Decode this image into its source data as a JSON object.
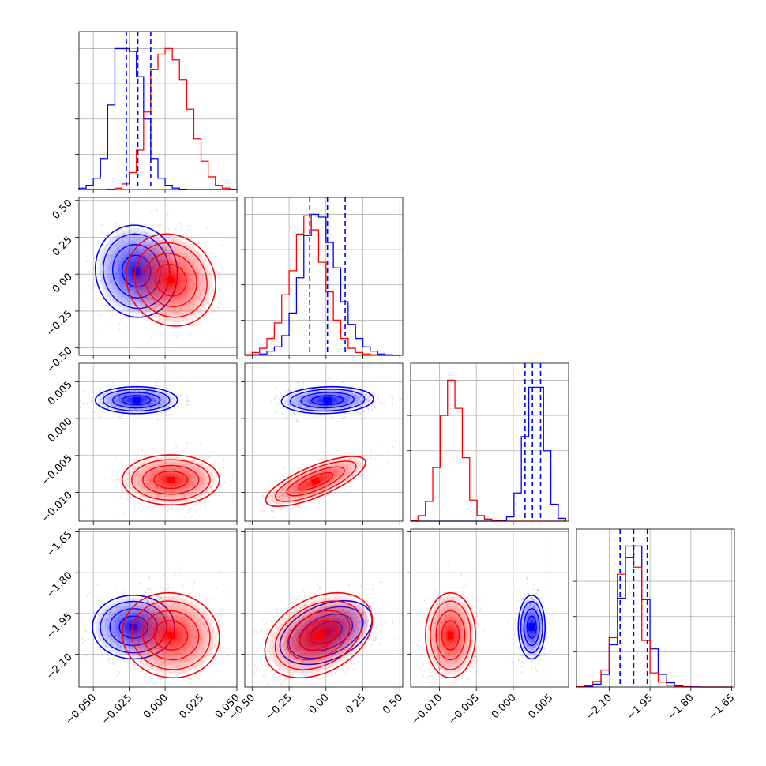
{
  "chart_data": {
    "type": "corner",
    "title": "",
    "grid": true,
    "legend": "none",
    "series": [
      {
        "color": "#ff0000"
      },
      {
        "color": "#0000ff"
      }
    ],
    "parameters": [
      {
        "range": [
          -0.06,
          0.05
        ],
        "ticks": [
          -0.05,
          -0.025,
          0.0,
          0.025,
          0.05
        ],
        "tick_labels": [
          "−0.050",
          "−0.025",
          "0.000",
          "0.025",
          "0.050"
        ]
      },
      {
        "range": [
          -0.55,
          0.52
        ],
        "ticks": [
          -0.5,
          -0.25,
          0.0,
          0.25,
          0.5
        ],
        "tick_labels": [
          "−0.50",
          "−0.25",
          "0.00",
          "0.25",
          "0.50"
        ]
      },
      {
        "range": [
          -0.0139,
          0.0075
        ],
        "ticks": [
          -0.01,
          -0.005,
          0.0,
          0.005
        ],
        "tick_labels": [
          "−0.010",
          "−0.005",
          "0.000",
          "0.005"
        ]
      },
      {
        "range": [
          -2.22,
          -1.64
        ],
        "ticks": [
          -2.1,
          -1.95,
          -1.8,
          -1.65
        ],
        "tick_labels": [
          "−2.10",
          "−1.95",
          "−1.80",
          "−1.65"
        ]
      }
    ],
    "marginals": [
      {
        "edges": [
          -0.06,
          -0.055,
          -0.05,
          -0.045,
          -0.04,
          -0.035,
          -0.03,
          -0.025,
          -0.02,
          -0.015,
          -0.01,
          -0.005,
          0.0,
          0.005,
          0.01,
          0.015,
          0.02,
          0.025,
          0.03,
          0.035,
          0.04,
          0.045,
          0.05
        ],
        "red": [
          0,
          0,
          0,
          0,
          0.002,
          0.01,
          0.04,
          0.12,
          0.28,
          0.55,
          0.85,
          0.96,
          1.0,
          0.92,
          0.78,
          0.57,
          0.36,
          0.2,
          0.09,
          0.03,
          0.01,
          0.002
        ],
        "blue": [
          0.01,
          0.03,
          0.08,
          0.22,
          0.6,
          1.0,
          1.0,
          0.98,
          0.8,
          0.5,
          0.22,
          0.08,
          0.03,
          0.01,
          0.002,
          0,
          0,
          0,
          0,
          0,
          0,
          0
        ],
        "quantiles": [
          -0.027,
          -0.019,
          -0.01
        ]
      },
      {
        "edges": [
          -0.55,
          -0.5,
          -0.45,
          -0.4,
          -0.35,
          -0.3,
          -0.25,
          -0.2,
          -0.15,
          -0.1,
          -0.05,
          0.0,
          0.05,
          0.1,
          0.15,
          0.2,
          0.25,
          0.3,
          0.35,
          0.4,
          0.45,
          0.5
        ],
        "red": [
          0.005,
          0.02,
          0.05,
          0.12,
          0.23,
          0.43,
          0.6,
          0.86,
          0.99,
          0.89,
          0.66,
          0.45,
          0.25,
          0.12,
          0.05,
          0.02,
          0.01,
          0.004,
          0,
          0,
          0
        ],
        "blue": [
          0,
          0.005,
          0.01,
          0.03,
          0.06,
          0.14,
          0.3,
          0.55,
          0.85,
          1.0,
          0.98,
          0.8,
          0.62,
          0.38,
          0.22,
          0.12,
          0.06,
          0.03,
          0.01,
          0.004,
          0
        ],
        "quantiles": [
          -0.11,
          0.01,
          0.13
        ]
      },
      {
        "edges": [
          -0.0139,
          -0.0129,
          -0.0119,
          -0.0109,
          -0.0099,
          -0.0089,
          -0.0079,
          -0.0069,
          -0.0059,
          -0.0049,
          -0.0039,
          -0.0029,
          -0.0019,
          -0.0009,
          0.0001,
          0.0011,
          0.0021,
          0.0031,
          0.0041,
          0.0051,
          0.0061,
          0.0071
        ],
        "red": [
          0.005,
          0.04,
          0.14,
          0.38,
          0.75,
          1.0,
          0.8,
          0.45,
          0.15,
          0.04,
          0.015,
          0.005,
          0,
          0,
          0,
          0,
          0,
          0,
          0,
          0,
          0
        ],
        "blue": [
          0,
          0,
          0,
          0,
          0,
          0,
          0,
          0,
          0,
          0,
          0,
          0,
          0.005,
          0.03,
          0.2,
          0.6,
          0.95,
          0.95,
          0.5,
          0.12,
          0.02
        ],
        "quantiles": [
          0.0016,
          0.0026,
          0.0037
        ]
      },
      {
        "edges": [
          -2.22,
          -2.19,
          -2.16,
          -2.13,
          -2.1,
          -2.07,
          -2.04,
          -2.01,
          -1.98,
          -1.95,
          -1.92,
          -1.89,
          -1.86,
          -1.83,
          -1.8,
          -1.77,
          -1.74,
          -1.71,
          -1.68,
          -1.65
        ],
        "red": [
          0.002,
          0.01,
          0.04,
          0.12,
          0.35,
          0.8,
          1.0,
          0.85,
          0.33,
          0.1,
          0.035,
          0.012,
          0.004,
          0.001,
          0,
          0,
          0,
          0,
          0
        ],
        "blue": [
          0.001,
          0.005,
          0.02,
          0.09,
          0.3,
          0.63,
          0.92,
          1.0,
          0.62,
          0.27,
          0.09,
          0.03,
          0.01,
          0.003,
          0.001,
          0,
          0,
          0,
          0
        ],
        "quantiles": [
          -2.06,
          -2.01,
          -1.96
        ]
      }
    ],
    "joint": [
      {
        "row": 1,
        "col": 0,
        "red": {
          "mean": [
            0.004,
            -0.04
          ],
          "sd": [
            0.012,
            0.12
          ],
          "rho": -0.1
        },
        "blue": {
          "mean": [
            -0.02,
            0.02
          ],
          "sd": [
            0.011,
            0.12
          ],
          "rho": -0.05
        }
      },
      {
        "row": 2,
        "col": 0,
        "red": {
          "mean": [
            0.004,
            -0.0083
          ],
          "sd": [
            0.013,
            0.0013
          ],
          "rho": 0.0
        },
        "blue": {
          "mean": [
            -0.02,
            0.0025
          ],
          "sd": [
            0.011,
            0.0007
          ],
          "rho": 0.0
        }
      },
      {
        "row": 2,
        "col": 1,
        "red": {
          "mean": [
            -0.07,
            -0.0085
          ],
          "sd": [
            0.13,
            0.0013
          ],
          "rho": 0.75
        },
        "blue": {
          "mean": [
            0.01,
            0.0025
          ],
          "sd": [
            0.12,
            0.0007
          ],
          "rho": 0.1
        }
      },
      {
        "row": 3,
        "col": 0,
        "red": {
          "mean": [
            0.004,
            -2.03
          ],
          "sd": [
            0.013,
            0.06
          ],
          "rho": -0.05
        },
        "blue": {
          "mean": [
            -0.022,
            -2.0
          ],
          "sd": [
            0.011,
            0.045
          ],
          "rho": 0.0
        }
      },
      {
        "row": 3,
        "col": 1,
        "red": {
          "mean": [
            -0.05,
            -2.03
          ],
          "sd": [
            0.14,
            0.06
          ],
          "rho": 0.35
        },
        "blue": {
          "mean": [
            0.0,
            -2.02
          ],
          "sd": [
            0.12,
            0.045
          ],
          "rho": 0.4
        }
      },
      {
        "row": 3,
        "col": 2,
        "red": {
          "mean": [
            -0.0085,
            -2.03
          ],
          "sd": [
            0.0013,
            0.06
          ],
          "rho": 0.0
        },
        "blue": {
          "mean": [
            0.0025,
            -2.0
          ],
          "sd": [
            0.0007,
            0.045
          ],
          "rho": 0.0
        }
      }
    ]
  }
}
